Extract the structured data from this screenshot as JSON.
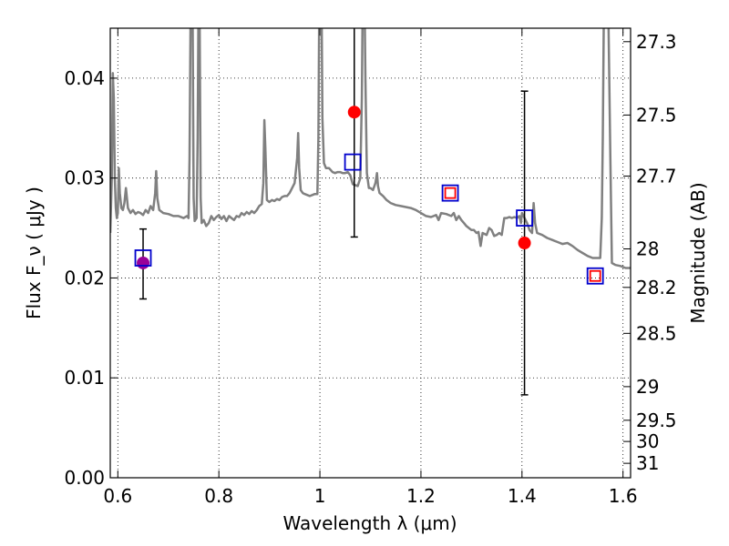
{
  "chart_data": {
    "type": "scatter",
    "xlabel": "Wavelength  λ (μm)",
    "ylabel": "Flux  F_ν  ( μJy )",
    "ylabel_right": "Magnitude (AB)",
    "xlim": [
      0.585,
      1.615
    ],
    "ylim": [
      0.0,
      0.045
    ],
    "grid": true,
    "x_ticks": [
      {
        "value": 0.6,
        "label": "0.6"
      },
      {
        "value": 0.8,
        "label": "0.8"
      },
      {
        "value": 1.0,
        "label": "1"
      },
      {
        "value": 1.2,
        "label": "1.2"
      },
      {
        "value": 1.4,
        "label": "1.4"
      },
      {
        "value": 1.6,
        "label": "1.6"
      }
    ],
    "y_ticks": [
      {
        "value": 0.0,
        "label": "0.00"
      },
      {
        "value": 0.01,
        "label": "0.01"
      },
      {
        "value": 0.02,
        "label": "0.02"
      },
      {
        "value": 0.03,
        "label": "0.03"
      },
      {
        "value": 0.04,
        "label": "0.04"
      }
    ],
    "mag_ticks": [
      {
        "mag": 27.3,
        "label": "27.3"
      },
      {
        "mag": 27.5,
        "label": "27.5"
      },
      {
        "mag": 27.7,
        "label": "27.7"
      },
      {
        "mag": 28.0,
        "label": "28"
      },
      {
        "mag": 28.2,
        "label": "28.2"
      },
      {
        "mag": 28.5,
        "label": "28.5"
      },
      {
        "mag": 29.0,
        "label": "29"
      },
      {
        "mag": 29.5,
        "label": "29.5"
      },
      {
        "mag": 30.0,
        "label": "30"
      },
      {
        "mag": 31.0,
        "label": "31"
      }
    ],
    "spectrum": {
      "color": "#808080",
      "points": [
        [
          0.585,
          0.0245
        ],
        [
          0.588,
          0.03
        ],
        [
          0.59,
          0.0405
        ],
        [
          0.592,
          0.038
        ],
        [
          0.594,
          0.03
        ],
        [
          0.596,
          0.027
        ],
        [
          0.598,
          0.026
        ],
        [
          0.6,
          0.0265
        ],
        [
          0.602,
          0.031
        ],
        [
          0.604,
          0.0285
        ],
        [
          0.607,
          0.027
        ],
        [
          0.61,
          0.0268
        ],
        [
          0.613,
          0.0275
        ],
        [
          0.616,
          0.029
        ],
        [
          0.62,
          0.027
        ],
        [
          0.625,
          0.0265
        ],
        [
          0.63,
          0.0268
        ],
        [
          0.635,
          0.0264
        ],
        [
          0.64,
          0.0266
        ],
        [
          0.645,
          0.0265
        ],
        [
          0.65,
          0.0263
        ],
        [
          0.655,
          0.0268
        ],
        [
          0.66,
          0.0265
        ],
        [
          0.665,
          0.0272
        ],
        [
          0.67,
          0.0268
        ],
        [
          0.674,
          0.0285
        ],
        [
          0.676,
          0.0307
        ],
        [
          0.678,
          0.028
        ],
        [
          0.682,
          0.0268
        ],
        [
          0.69,
          0.0265
        ],
        [
          0.7,
          0.0264
        ],
        [
          0.71,
          0.0262
        ],
        [
          0.72,
          0.0262
        ],
        [
          0.73,
          0.026
        ],
        [
          0.737,
          0.0262
        ],
        [
          0.74,
          0.026
        ],
        [
          0.742,
          0.032
        ],
        [
          0.744,
          0.046
        ],
        [
          0.746,
          0.05
        ],
        [
          0.748,
          0.046
        ],
        [
          0.75,
          0.028
        ],
        [
          0.752,
          0.0257
        ],
        [
          0.756,
          0.026
        ],
        [
          0.758,
          0.034
        ],
        [
          0.76,
          0.05
        ],
        [
          0.762,
          0.046
        ],
        [
          0.764,
          0.028
        ],
        [
          0.766,
          0.0255
        ],
        [
          0.77,
          0.0258
        ],
        [
          0.775,
          0.0252
        ],
        [
          0.78,
          0.0255
        ],
        [
          0.785,
          0.0262
        ],
        [
          0.79,
          0.0258
        ],
        [
          0.795,
          0.0261
        ],
        [
          0.8,
          0.0263
        ],
        [
          0.805,
          0.0259
        ],
        [
          0.81,
          0.0262
        ],
        [
          0.815,
          0.0257
        ],
        [
          0.82,
          0.0262
        ],
        [
          0.825,
          0.026
        ],
        [
          0.83,
          0.0258
        ],
        [
          0.835,
          0.0262
        ],
        [
          0.84,
          0.0261
        ],
        [
          0.845,
          0.0265
        ],
        [
          0.85,
          0.0263
        ],
        [
          0.855,
          0.0266
        ],
        [
          0.86,
          0.0264
        ],
        [
          0.865,
          0.0267
        ],
        [
          0.87,
          0.0265
        ],
        [
          0.875,
          0.0268
        ],
        [
          0.88,
          0.0272
        ],
        [
          0.885,
          0.0274
        ],
        [
          0.888,
          0.0295
        ],
        [
          0.89,
          0.0358
        ],
        [
          0.892,
          0.033
        ],
        [
          0.895,
          0.0278
        ],
        [
          0.9,
          0.0276
        ],
        [
          0.905,
          0.0278
        ],
        [
          0.91,
          0.0277
        ],
        [
          0.915,
          0.0279
        ],
        [
          0.92,
          0.0278
        ],
        [
          0.925,
          0.0281
        ],
        [
          0.93,
          0.0282
        ],
        [
          0.935,
          0.0282
        ],
        [
          0.94,
          0.0285
        ],
        [
          0.945,
          0.029
        ],
        [
          0.95,
          0.0295
        ],
        [
          0.955,
          0.032
        ],
        [
          0.957,
          0.0345
        ],
        [
          0.959,
          0.031
        ],
        [
          0.962,
          0.0288
        ],
        [
          0.966,
          0.0285
        ],
        [
          0.97,
          0.0284
        ],
        [
          0.975,
          0.0283
        ],
        [
          0.98,
          0.0282
        ],
        [
          0.985,
          0.0283
        ],
        [
          0.99,
          0.0284
        ],
        [
          0.995,
          0.0284
        ],
        [
          0.997,
          0.034
        ],
        [
          0.999,
          0.05
        ],
        [
          1.003,
          0.05
        ],
        [
          1.005,
          0.036
        ],
        [
          1.008,
          0.0315
        ],
        [
          1.012,
          0.031
        ],
        [
          1.018,
          0.031
        ],
        [
          1.025,
          0.0306
        ],
        [
          1.03,
          0.0305
        ],
        [
          1.035,
          0.0306
        ],
        [
          1.04,
          0.0306
        ],
        [
          1.045,
          0.0305
        ],
        [
          1.05,
          0.0305
        ],
        [
          1.055,
          0.0306
        ],
        [
          1.06,
          0.0303
        ],
        [
          1.065,
          0.0294
        ],
        [
          1.07,
          0.0293
        ],
        [
          1.075,
          0.0292
        ],
        [
          1.08,
          0.03
        ],
        [
          1.083,
          0.038
        ],
        [
          1.085,
          0.05
        ],
        [
          1.088,
          0.05
        ],
        [
          1.09,
          0.04
        ],
        [
          1.093,
          0.0305
        ],
        [
          1.097,
          0.029
        ],
        [
          1.1,
          0.029
        ],
        [
          1.105,
          0.0288
        ],
        [
          1.11,
          0.0295
        ],
        [
          1.113,
          0.0305
        ],
        [
          1.115,
          0.0292
        ],
        [
          1.118,
          0.0285
        ],
        [
          1.125,
          0.0282
        ],
        [
          1.132,
          0.0278
        ],
        [
          1.14,
          0.0275
        ],
        [
          1.15,
          0.0273
        ],
        [
          1.16,
          0.0272
        ],
        [
          1.17,
          0.0271
        ],
        [
          1.18,
          0.027
        ],
        [
          1.19,
          0.0268
        ],
        [
          1.2,
          0.0265
        ],
        [
          1.21,
          0.0262
        ],
        [
          1.22,
          0.0261
        ],
        [
          1.23,
          0.0263
        ],
        [
          1.235,
          0.0258
        ],
        [
          1.24,
          0.0265
        ],
        [
          1.25,
          0.0264
        ],
        [
          1.26,
          0.0262
        ],
        [
          1.265,
          0.0265
        ],
        [
          1.27,
          0.0258
        ],
        [
          1.275,
          0.0262
        ],
        [
          1.28,
          0.0258
        ],
        [
          1.285,
          0.0255
        ],
        [
          1.29,
          0.0252
        ],
        [
          1.295,
          0.025
        ],
        [
          1.3,
          0.0248
        ],
        [
          1.305,
          0.0248
        ],
        [
          1.31,
          0.0245
        ],
        [
          1.314,
          0.0246
        ],
        [
          1.318,
          0.0232
        ],
        [
          1.322,
          0.0245
        ],
        [
          1.33,
          0.0243
        ],
        [
          1.335,
          0.025
        ],
        [
          1.34,
          0.0248
        ],
        [
          1.345,
          0.0242
        ],
        [
          1.35,
          0.0243
        ],
        [
          1.355,
          0.0245
        ],
        [
          1.36,
          0.0243
        ],
        [
          1.365,
          0.026
        ],
        [
          1.37,
          0.026
        ],
        [
          1.375,
          0.0261
        ],
        [
          1.38,
          0.026
        ],
        [
          1.385,
          0.0261
        ],
        [
          1.39,
          0.026
        ],
        [
          1.395,
          0.0262
        ],
        [
          1.398,
          0.0255
        ],
        [
          1.4,
          0.0265
        ],
        [
          1.405,
          0.026
        ],
        [
          1.41,
          0.0255
        ],
        [
          1.415,
          0.0248
        ],
        [
          1.42,
          0.0245
        ],
        [
          1.423,
          0.0275
        ],
        [
          1.426,
          0.0255
        ],
        [
          1.43,
          0.0245
        ],
        [
          1.44,
          0.0243
        ],
        [
          1.45,
          0.024
        ],
        [
          1.46,
          0.0238
        ],
        [
          1.47,
          0.0236
        ],
        [
          1.48,
          0.0234
        ],
        [
          1.49,
          0.0235
        ],
        [
          1.5,
          0.0232
        ],
        [
          1.51,
          0.0228
        ],
        [
          1.52,
          0.0225
        ],
        [
          1.53,
          0.0222
        ],
        [
          1.54,
          0.022
        ],
        [
          1.55,
          0.022
        ],
        [
          1.555,
          0.022
        ],
        [
          1.558,
          0.026
        ],
        [
          1.56,
          0.034
        ],
        [
          1.562,
          0.046
        ],
        [
          1.565,
          0.05
        ],
        [
          1.57,
          0.05
        ],
        [
          1.575,
          0.032
        ],
        [
          1.578,
          0.0215
        ],
        [
          1.585,
          0.0213
        ],
        [
          1.595,
          0.0212
        ],
        [
          1.605,
          0.021
        ],
        [
          1.615,
          0.021
        ]
      ]
    },
    "series": [
      {
        "marker": "open-square",
        "color": "#0000cc",
        "points": [
          {
            "x": 0.65,
            "y": 0.022
          },
          {
            "x": 1.065,
            "y": 0.0316
          },
          {
            "x": 1.258,
            "y": 0.0285
          },
          {
            "x": 1.405,
            "y": 0.026
          },
          {
            "x": 1.545,
            "y": 0.0202
          }
        ]
      },
      {
        "marker": "open-square-small",
        "color": "#ff0000",
        "points": [
          {
            "x": 1.258,
            "y": 0.0285
          },
          {
            "x": 1.545,
            "y": 0.0202
          }
        ]
      },
      {
        "marker": "filled-circle",
        "color": "#ff0000",
        "points": [
          {
            "x": 1.068,
            "y": 0.0366,
            "err_low": 0.0241,
            "err_high": 0.046
          },
          {
            "x": 1.405,
            "y": 0.0235,
            "err_low": 0.0083,
            "err_high": 0.0387
          }
        ]
      },
      {
        "marker": "filled-circle",
        "color": "#990099",
        "points": [
          {
            "x": 0.65,
            "y": 0.0215,
            "err_low": 0.0179,
            "err_high": 0.0249
          }
        ]
      }
    ]
  }
}
